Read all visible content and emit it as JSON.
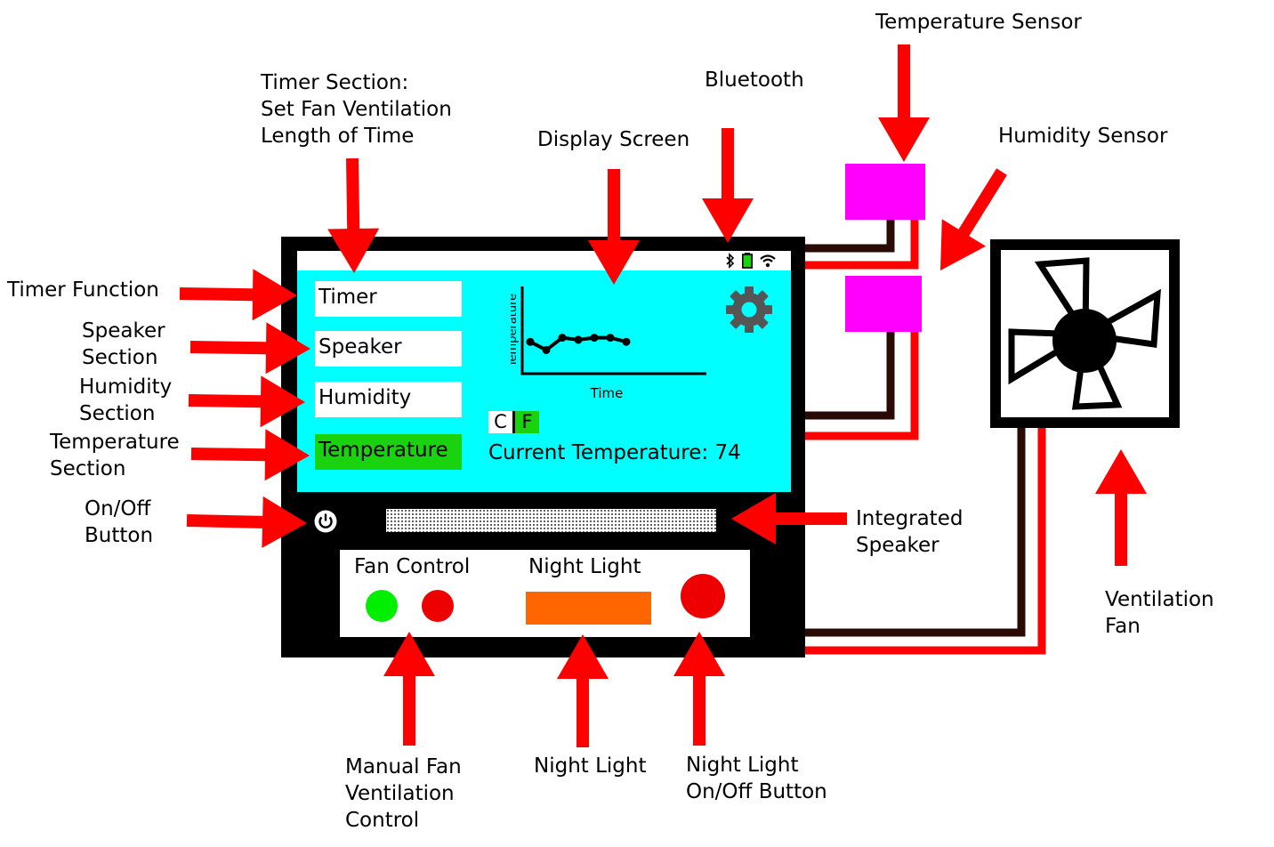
{
  "labels": {
    "timer_function": "Timer Function",
    "speaker_section": [
      "Speaker",
      "Section"
    ],
    "humidity_section": [
      "Humidity",
      "Section"
    ],
    "temperature_section": [
      "Temperature",
      "Section"
    ],
    "on_off_button": [
      "On/Off",
      "Button"
    ],
    "timer_section": [
      "Timer Section:",
      "Set Fan Ventilation",
      "Length of Time"
    ],
    "display_screen": "Display Screen",
    "bluetooth": "Bluetooth",
    "temperature_sensor": "Temperature Sensor",
    "humidity_sensor": "Humidity Sensor",
    "integrated_speaker": [
      "Integrated",
      "Speaker"
    ],
    "ventilation_fan": [
      "Ventilation",
      "Fan"
    ],
    "manual_fan": [
      "Manual Fan",
      "Ventilation",
      "Control"
    ],
    "night_light": "Night Light",
    "night_light_button": [
      "Night Light",
      "On/Off Button"
    ]
  },
  "screen": {
    "menu": [
      "Timer",
      "Speaker",
      "Humidity",
      "Temperature"
    ],
    "active_menu": "Temperature",
    "chart_xlabel": "Time",
    "chart_ylabel": "Temperature",
    "unit_c": "C",
    "unit_f": "F",
    "current_temp_label": "Current Temperature:",
    "current_temp_value": "74"
  },
  "panel": {
    "fan_control": "Fan Control",
    "night_light": "Night Light"
  },
  "chart_data": {
    "type": "line",
    "xlabel": "Time",
    "ylabel": "Temperature",
    "series": [
      {
        "values": [
          6,
          2,
          8,
          7,
          8,
          8,
          6
        ]
      }
    ]
  },
  "colors": {
    "arrow": "#ff0000",
    "screen": "#00ffff",
    "active": "#1ad30e",
    "sensor": "#ff00ff",
    "night_light": "#ff6600",
    "fan_on": "#00ee00",
    "fan_off": "#ee0000",
    "wire_dark": "#2a0a05"
  },
  "icons": [
    "bluetooth-icon",
    "battery-icon",
    "wifi-icon",
    "gear-icon",
    "power-icon",
    "fan-icon"
  ]
}
